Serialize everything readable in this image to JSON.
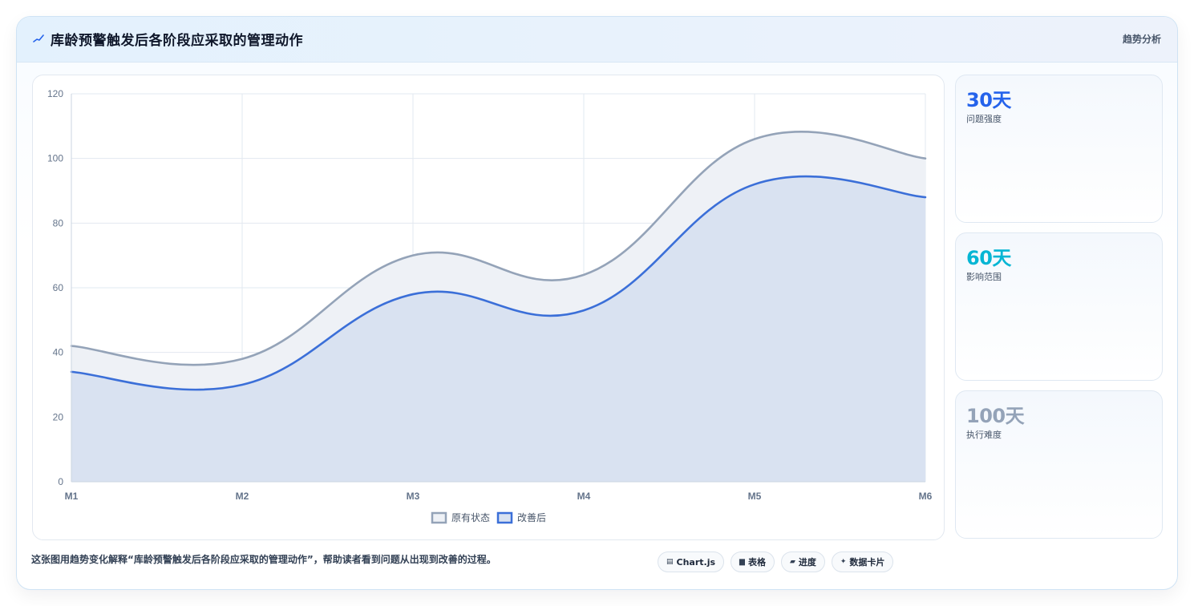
{
  "header": {
    "icon": "sparkline-icon",
    "title": "库龄预警触发后各阶段应采取的管理动作",
    "tag": "趋势分析"
  },
  "chart_data": {
    "type": "area",
    "categories": [
      "M1",
      "M2",
      "M3",
      "M4",
      "M5",
      "M6"
    ],
    "series": [
      {
        "name": "原有状态",
        "values": [
          42,
          38,
          70,
          64,
          106,
          100
        ],
        "color": "#94a3b8",
        "fill": "#eef1f6"
      },
      {
        "name": "改善后",
        "values": [
          34,
          30,
          58,
          53,
          92,
          88
        ],
        "color": "#3b6fd8",
        "fill": "#d9e2f1"
      }
    ],
    "ylim": [
      0,
      120
    ],
    "yticks": [
      0,
      20,
      40,
      60,
      80,
      100,
      120
    ],
    "grid": true,
    "legend": "bottom",
    "title": "",
    "xlabel": "",
    "ylabel": ""
  },
  "stats": [
    {
      "value": "30天",
      "label": "问题强度",
      "color": "#2563eb"
    },
    {
      "value": "60天",
      "label": "影响范围",
      "color": "#06b6d4"
    },
    {
      "value": "100天",
      "label": "执行难度",
      "color": "#94a3b8"
    }
  ],
  "footer": {
    "text": "这张图用趋势变化解释“库龄预警触发后各阶段应采取的管理动作”，帮助读者看到问题从出现到改善的过程。",
    "badges": [
      {
        "icon": "chart-icon",
        "glyph": "▤",
        "label": "Chart.js"
      },
      {
        "icon": "table-icon",
        "glyph": "▆",
        "label": "表格"
      },
      {
        "icon": "progress-icon",
        "glyph": "▰",
        "label": "进度"
      },
      {
        "icon": "card-icon",
        "glyph": "✦",
        "label": "数据卡片"
      }
    ]
  }
}
